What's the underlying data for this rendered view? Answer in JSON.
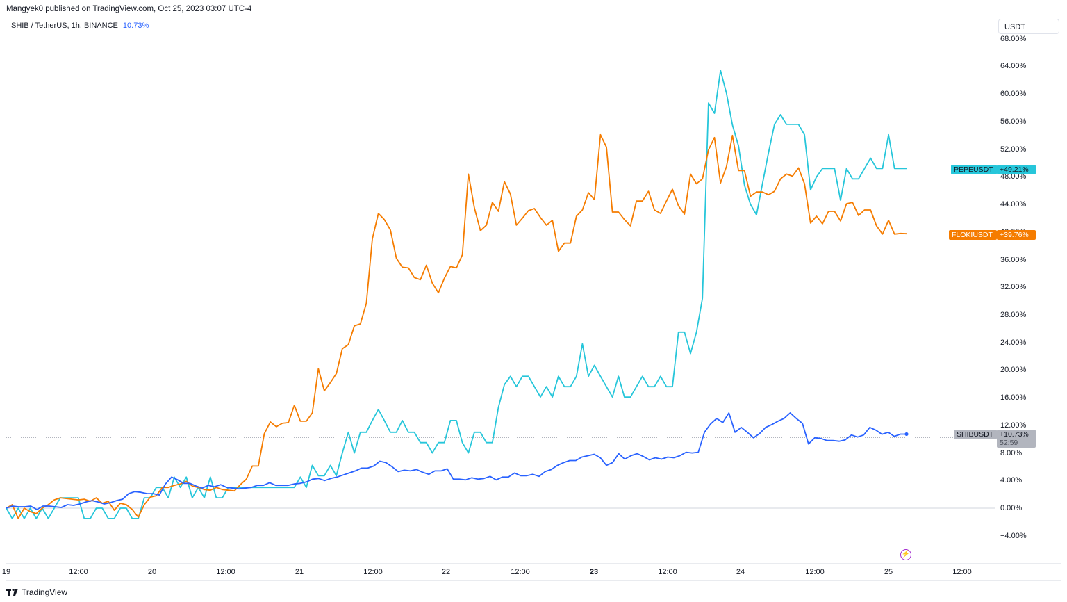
{
  "publisher_line": "Mangyek0 published on TradingView.com, Oct 25, 2023 03:07 UTC-4",
  "legend": {
    "symbol": "SHIB / TetherUS, 1h, BINANCE",
    "change": "10.73%"
  },
  "currency": "USDT",
  "watermark": "TradingView",
  "icons": {
    "logo": "tradingview-logo-icon",
    "bolt": "lightning-icon"
  },
  "colors": {
    "pepe": "#26c6da",
    "floki": "#f57c00",
    "shib": "#2962ff",
    "grid": "#e9ebef",
    "price_line": "#b2b5be",
    "shib_tag": "#b2b5be"
  },
  "tags": {
    "pepe": {
      "name": "PEPEUSDT",
      "value": "+49.21%"
    },
    "floki": {
      "name": "FLOKIUSDT",
      "value": "+39.76%"
    },
    "shib": {
      "name": "SHIBUSDT",
      "value": "+10.73%",
      "countdown": "52:59"
    }
  },
  "chart_data": {
    "type": "line",
    "title": "SHIB / TetherUS, 1h, BINANCE",
    "xlabel": "",
    "ylabel": "USDT (% change)",
    "ylim": [
      -8,
      70
    ],
    "grid": false,
    "legend_position": "price-scale tags (right)",
    "x_tick_labels": [
      "19",
      "12:00",
      "20",
      "12:00",
      "21",
      "12:00",
      "22",
      "12:00",
      "23",
      "12:00",
      "24",
      "12:00",
      "25",
      "12:00"
    ],
    "y_tick_labels": [
      "68.00%",
      "64.00%",
      "60.00%",
      "56.00%",
      "52.00%",
      "48.00%",
      "44.00%",
      "40.00%",
      "36.00%",
      "32.00%",
      "28.00%",
      "24.00%",
      "20.00%",
      "16.00%",
      "12.00%",
      "8.00%",
      "4.00%",
      "0.00%",
      "-4.00%"
    ],
    "x_start_label": "Oct 19 ~00:00",
    "interval": "1h",
    "series": [
      {
        "name": "PEPEUSDT",
        "last": 49.21,
        "values": [
          0,
          -1.5,
          0,
          -1.5,
          0,
          -1.5,
          0,
          -1.5,
          0,
          1.5,
          1.5,
          1.5,
          1.5,
          -1.5,
          -1.5,
          0,
          0,
          -1.5,
          -1.5,
          0,
          0,
          -1.5,
          -1.5,
          1.5,
          1.5,
          3,
          3,
          1.5,
          4.5,
          3,
          4.5,
          1.5,
          3,
          1.5,
          4.5,
          1.5,
          1.5,
          3,
          3,
          3,
          3,
          3,
          3,
          3,
          3,
          3,
          3,
          3,
          3,
          4.5,
          3,
          6.2,
          4.7,
          4.7,
          6.2,
          4.7,
          8,
          11,
          8,
          11,
          11,
          12.7,
          14.3,
          12.7,
          11,
          11,
          12.7,
          11,
          11,
          9.5,
          9.5,
          8,
          9.5,
          9.5,
          12.7,
          12.7,
          9.5,
          8,
          11,
          11,
          9.5,
          9.5,
          14.6,
          17.9,
          19.1,
          17.6,
          19.1,
          19.1,
          17.6,
          16.1,
          17.6,
          16.1,
          19.1,
          17.6,
          17.6,
          19.1,
          23.8,
          19.1,
          20.7,
          19.1,
          17.6,
          16.1,
          19.1,
          16.1,
          16.1,
          17.6,
          19.1,
          17.6,
          17.6,
          19.1,
          17.6,
          17.6,
          25.5,
          25.5,
          22.4,
          25.5,
          30.4,
          58.7,
          57.2,
          63.4,
          60.1,
          55.5,
          52.5,
          46.8,
          44,
          42.5,
          47,
          51.5,
          55.6,
          57,
          55.6,
          55.6,
          55.6,
          54.1,
          46.1,
          48,
          49.2,
          49.2,
          49.2,
          44.6,
          49.2,
          47.7,
          47.7,
          49.2,
          50.7,
          49.2,
          49.2,
          54.1,
          49.2,
          49.2,
          49.2
        ],
        "color": "#26c6da"
      },
      {
        "name": "FLOKIUSDT",
        "last": 39.76,
        "values": [
          0,
          0.5,
          -1.5,
          0,
          -0.5,
          -0.8,
          0,
          0.5,
          1.2,
          1.5,
          1.4,
          1.3,
          1.2,
          1.3,
          1.0,
          1.5,
          0.7,
          1.0,
          -0.3,
          0.7,
          0.5,
          -0.2,
          -1.3,
          0.5,
          1.6,
          1.8,
          3.0,
          3.0,
          3.3,
          3.5,
          3.9,
          3.2,
          3.0,
          2.7,
          2.6,
          3.0,
          2.7,
          2.6,
          2.5,
          3.4,
          4.2,
          6.1,
          6.1,
          10.8,
          12.5,
          11.8,
          12.3,
          12.4,
          14.9,
          12.6,
          12.6,
          13.8,
          20.2,
          17.0,
          18.2,
          19.5,
          23.1,
          23.7,
          26.4,
          26.7,
          29.7,
          39,
          42.7,
          41.8,
          40.3,
          36.2,
          34.9,
          34.8,
          33.4,
          33.1,
          35.2,
          32.6,
          31.2,
          33.3,
          35,
          34.8,
          36.7,
          48.4,
          43.5,
          40.2,
          41.0,
          44.3,
          43.0,
          47.3,
          45.5,
          41.0,
          42.0,
          43.1,
          43.4,
          42.1,
          41.0,
          41.7,
          37.2,
          38.4,
          38.4,
          42.3,
          43.2,
          45.7,
          44.7,
          54.1,
          52.3,
          42.9,
          42.9,
          41.8,
          40.9,
          44.5,
          44.5,
          45.9,
          43.2,
          42.7,
          44.5,
          46.2,
          43.8,
          42.6,
          48.4,
          47.0,
          47.7,
          51.9,
          53.7,
          47.1,
          49.5,
          54.0,
          48.9,
          48.9,
          45.2,
          45.8,
          45.8,
          45.4,
          45.9,
          47.7,
          48.4,
          48.1,
          49.3,
          47.0,
          41.3,
          42.3,
          41.2,
          43.0,
          43.0,
          41.6,
          44.1,
          44.3,
          42.4,
          43.2,
          43.2,
          40.9,
          39.7,
          41.7,
          39.7,
          39.8,
          39.76
        ],
        "color": "#f57c00"
      },
      {
        "name": "SHIBUSDT",
        "last": 10.73,
        "values": [
          0,
          0.3,
          0.2,
          0.2,
          0.3,
          -0.2,
          0.3,
          0.3,
          0.2,
          0.1,
          0.5,
          0.4,
          0.6,
          0.9,
          1.1,
          0.9,
          0.6,
          0.8,
          1.1,
          1.3,
          2.1,
          2.4,
          2.3,
          2.1,
          2.1,
          1.9,
          3.5,
          4.5,
          4.1,
          3.6,
          3.6,
          3.2,
          2.9,
          3.3,
          3.1,
          3.4,
          3.0,
          2.9,
          2.8,
          2.9,
          3.0,
          3.3,
          3.3,
          3.7,
          3.3,
          3.3,
          3.3,
          3.5,
          3.6,
          3.8,
          4.2,
          4.3,
          4.0,
          4.3,
          4.5,
          4.8,
          5.1,
          5.4,
          5.8,
          5.8,
          6.1,
          6.8,
          6.6,
          6.0,
          5.3,
          5.5,
          5.4,
          5.6,
          5.2,
          4.9,
          5.4,
          5.4,
          5.7,
          4.2,
          4.2,
          4.1,
          4.4,
          4.2,
          4.3,
          4.6,
          4.1,
          4.5,
          4.5,
          5.1,
          4.7,
          4.7,
          4.9,
          4.6,
          5.3,
          5.6,
          6.2,
          6.6,
          6.9,
          6.9,
          7.4,
          7.6,
          7.8,
          7.3,
          6.2,
          6.6,
          7.9,
          7.1,
          7.6,
          7.9,
          7.5,
          7.0,
          7.3,
          7.1,
          7.4,
          7.3,
          7.6,
          8.1,
          8.0,
          8.1,
          11.0,
          12.2,
          13.0,
          12.4,
          13.8,
          11.0,
          11.7,
          11.0,
          10.2,
          10.8,
          11.7,
          12.1,
          12.6,
          13.0,
          13.8,
          13.0,
          12.3,
          9.3,
          10.2,
          10.1,
          9.8,
          9.8,
          9.7,
          9.9,
          10.6,
          10.3,
          10.6,
          11.7,
          11.3,
          10.7,
          11.0,
          10.4,
          10.73,
          10.73
        ],
        "color": "#2962ff"
      }
    ]
  }
}
